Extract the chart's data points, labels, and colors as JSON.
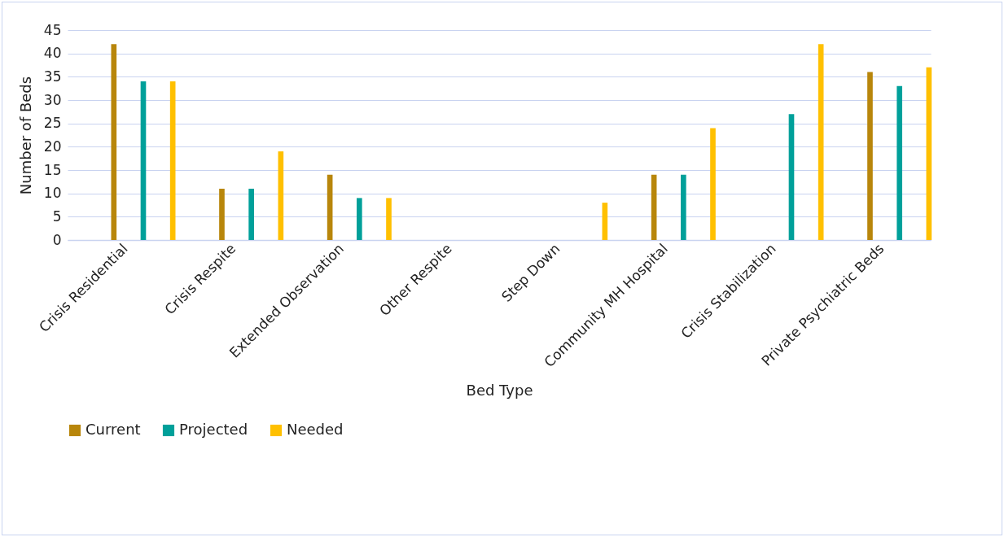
{
  "chart_data": {
    "type": "bar",
    "xlabel": "Bed Type",
    "ylabel": "Number of Beds",
    "categories": [
      "Crisis Residential",
      "Crisis Respite",
      "Extended Observation",
      "Other Respite",
      "Step Down",
      "Community MH Hospital",
      "Crisis Stabilization",
      "Private Psychiatric Beds"
    ],
    "series": [
      {
        "name": "Current",
        "color": "#b8860b",
        "values": [
          42,
          11,
          14,
          0,
          0,
          14,
          0,
          36
        ]
      },
      {
        "name": "Projected",
        "color": "#00a09a",
        "values": [
          34,
          11,
          9,
          0,
          0,
          14,
          27,
          33
        ]
      },
      {
        "name": "Needed",
        "color": "#ffc000",
        "values": [
          34,
          19,
          9,
          0,
          8,
          24,
          42,
          37
        ]
      }
    ],
    "ylim": [
      0,
      45
    ],
    "yticks": [
      0,
      5,
      10,
      15,
      20,
      25,
      30,
      35,
      40,
      45
    ],
    "grid": "y",
    "legend": "bottom"
  }
}
